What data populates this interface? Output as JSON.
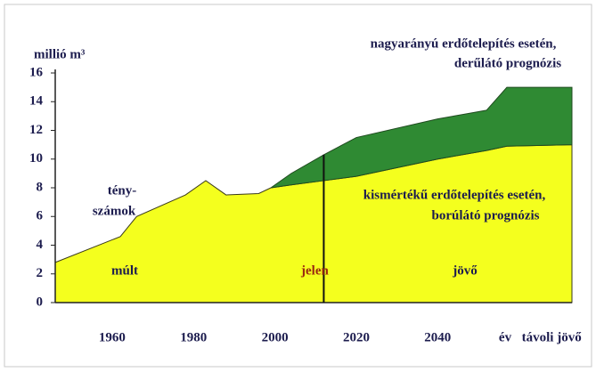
{
  "chart_data": {
    "type": "area",
    "y_label": "millió m³",
    "x_label": "év",
    "x": [
      1946,
      1962,
      1966,
      1978,
      1983,
      1988,
      1996,
      1999,
      2004,
      2012,
      2020,
      2040,
      2052,
      2057,
      2073
    ],
    "series": [
      {
        "name": "kismértékű erdőtelepítés esetén, borúlátó prognózis",
        "color": "#f4ff1e",
        "values": [
          2.8,
          4.6,
          6.0,
          7.5,
          8.5,
          7.5,
          7.6,
          8.0,
          8.2,
          8.5,
          8.8,
          10.0,
          10.6,
          10.9,
          11.0
        ]
      },
      {
        "name": "nagyarányú erdőtelepítés esetén, derűlátó prognózis",
        "color": "#2f8a33",
        "values": [
          null,
          null,
          null,
          null,
          null,
          null,
          null,
          8.0,
          9.0,
          10.3,
          11.5,
          12.8,
          13.4,
          15,
          15
        ]
      }
    ],
    "xlim": [
      1946,
      2073
    ],
    "xticks": [
      1960,
      1980,
      2000,
      2020,
      2040,
      {
        "value": 2068,
        "label": "távoli jövő"
      }
    ],
    "ylim": [
      0,
      16
    ],
    "yticks": [
      0,
      2,
      4,
      6,
      8,
      10,
      12,
      14,
      16
    ],
    "present": {
      "x": 2012,
      "label": "jelen"
    },
    "annotations": [
      "tény-",
      "számok",
      "múlt",
      "jövő",
      "kismértékű erdőtelepítés esetén,",
      "borúlátó prognózis",
      "nagyarányú erdőtelepítés esetén,",
      "derűlátó prognózis"
    ]
  }
}
